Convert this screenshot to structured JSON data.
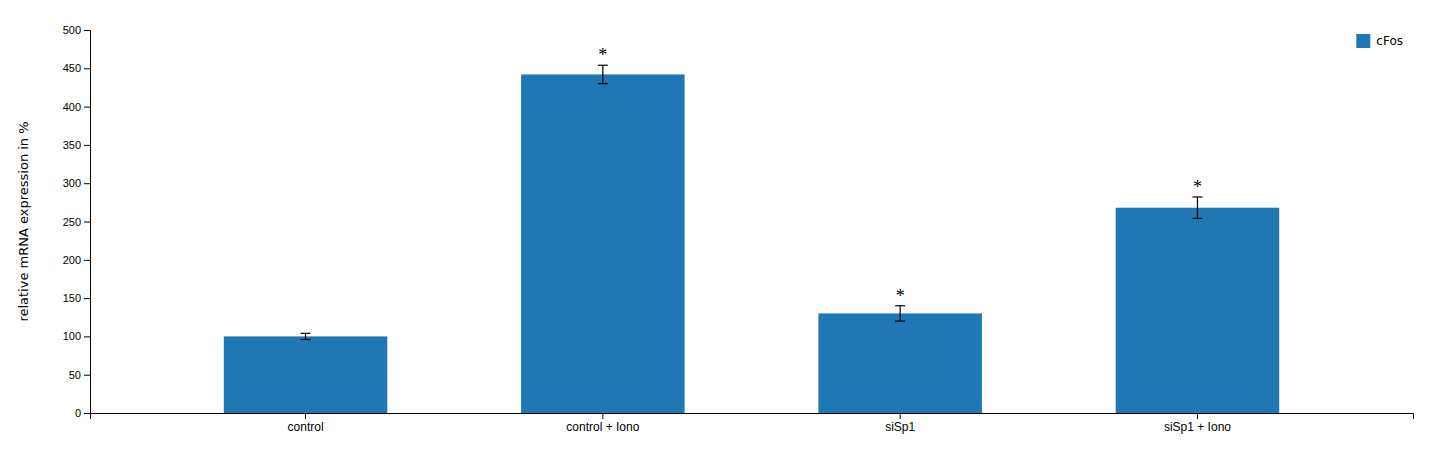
{
  "chart_data": {
    "type": "bar",
    "categories": [
      "control",
      "control + Iono",
      "siSp1",
      "siSp1 + Iono"
    ],
    "series": [
      {
        "name": "cFos",
        "values": [
          100,
          442,
          130,
          268
        ],
        "errors": [
          4,
          12,
          10,
          14
        ]
      }
    ],
    "ylabel": "relative mRNA expression in %",
    "ylim": [
      0,
      500
    ],
    "yticks": [
      0,
      50,
      100,
      150,
      200,
      250,
      300,
      350,
      400,
      450,
      500
    ],
    "annotations": [
      {
        "text": "*",
        "category": "control + Iono"
      },
      {
        "text": "*",
        "category": "siSp1"
      },
      {
        "text": "*",
        "category": "siSp1 + Iono"
      }
    ],
    "grid": false,
    "legend": "upper right"
  }
}
